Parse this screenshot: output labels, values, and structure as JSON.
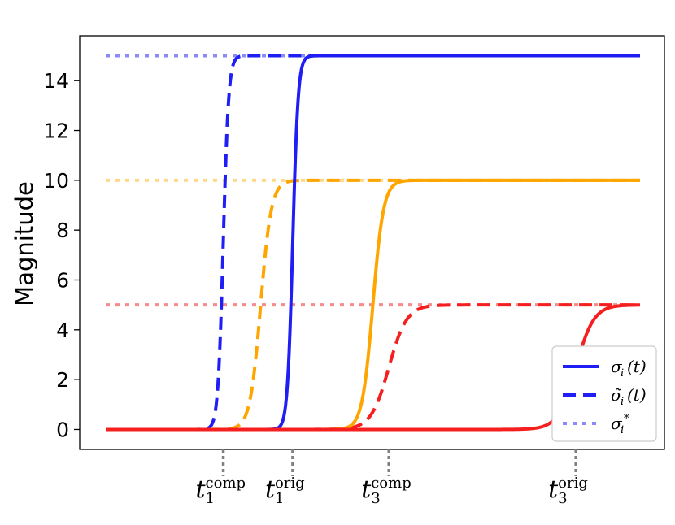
{
  "chart_data": {
    "type": "line",
    "xlabel": "",
    "ylabel": "Magnitude",
    "ylim": [
      -0.8,
      15.8
    ],
    "yticks": [
      "0",
      "2",
      "4",
      "6",
      "8",
      "10",
      "12",
      "14"
    ],
    "ytick_values": [
      0,
      2,
      4,
      6,
      8,
      10,
      12,
      14
    ],
    "grid": false,
    "legend_position": "bottom-right",
    "x_ticks_shown": false,
    "event_markers": [
      {
        "base": "t",
        "sub": "1",
        "sup": "comp",
        "x": 0.22
      },
      {
        "base": "t",
        "sub": "1",
        "sup": "orig",
        "x": 0.35
      },
      {
        "base": "t",
        "sub": "3",
        "sup": "comp",
        "x": 0.53
      },
      {
        "base": "t",
        "sub": "3",
        "sup": "orig",
        "x": 0.88
      }
    ],
    "series": [
      {
        "group": "blue",
        "style": "solid",
        "color": "#1f1ff5",
        "level": 15,
        "switch_x": 0.35,
        "steep": 200
      },
      {
        "group": "blue",
        "style": "dashed",
        "color": "#1f1ff5",
        "level": 15,
        "switch_x": 0.22,
        "steep": 200
      },
      {
        "group": "blue",
        "style": "dotted",
        "color": "#8b8bf7",
        "level": 15
      },
      {
        "group": "orange",
        "style": "solid",
        "color": "#ffa500",
        "level": 10,
        "switch_x": 0.5,
        "steep": 100
      },
      {
        "group": "orange",
        "style": "dashed",
        "color": "#ffa500",
        "level": 10,
        "switch_x": 0.29,
        "steep": 100
      },
      {
        "group": "orange",
        "style": "dotted",
        "color": "#ffd98a",
        "level": 10
      },
      {
        "group": "red",
        "style": "solid",
        "color": "#f51f1f",
        "level": 5,
        "switch_x": 0.88,
        "steep": 60
      },
      {
        "group": "red",
        "style": "dashed",
        "color": "#f51f1f",
        "level": 5,
        "switch_x": 0.53,
        "steep": 60
      },
      {
        "group": "red",
        "style": "dotted",
        "color": "#f78b8b",
        "level": 5
      }
    ],
    "legend": [
      {
        "name": "σi(t)",
        "base": "σ",
        "sub": "i",
        "suffix": "(t)",
        "style": "solid"
      },
      {
        "name": "σ̃i(t)",
        "base": "σ̃",
        "sub": "i",
        "suffix": "(t)",
        "style": "dashed"
      },
      {
        "name": "σi*",
        "base": "σ",
        "sub": "i",
        "suffix": "*",
        "style": "dotted"
      }
    ],
    "legend_color": "#1f1ff5",
    "legend_dotted_color": "#8b8bf7"
  }
}
